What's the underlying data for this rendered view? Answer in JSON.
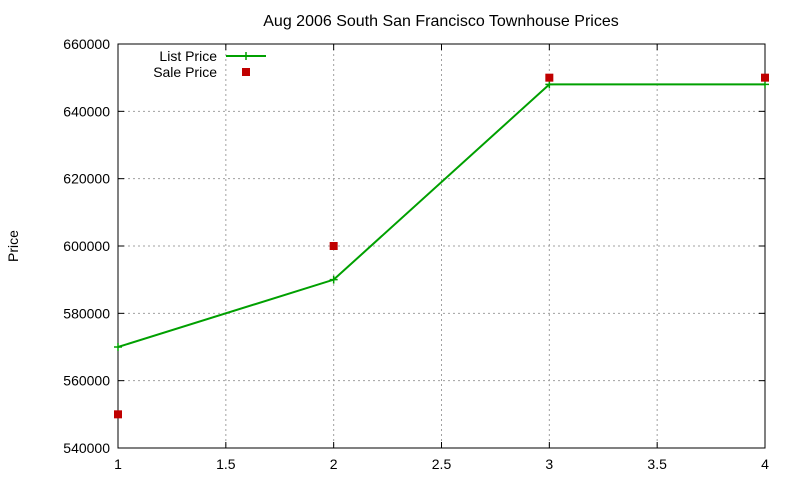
{
  "chart_data": {
    "type": "line",
    "title": "Aug 2006 South San Francisco Townhouse Prices",
    "xlabel": "",
    "ylabel": "Price",
    "xlim": [
      1,
      4
    ],
    "ylim": [
      540000,
      660000
    ],
    "x_ticks": [
      1,
      1.5,
      2,
      2.5,
      3,
      3.5,
      4
    ],
    "x_tick_labels": [
      "1",
      "1.5",
      "2",
      "2.5",
      "3",
      "3.5",
      "4"
    ],
    "y_ticks": [
      540000,
      560000,
      580000,
      600000,
      620000,
      640000,
      660000
    ],
    "y_tick_labels": [
      "540000",
      "560000",
      "580000",
      "600000",
      "620000",
      "640000",
      "660000"
    ],
    "grid": true,
    "legend_position": "top-left",
    "series": [
      {
        "name": "List Price",
        "style": "lines+crosses",
        "color": "#00a000",
        "x": [
          1,
          2,
          3,
          4
        ],
        "y": [
          570000,
          590000,
          648000,
          648000
        ]
      },
      {
        "name": "Sale Price",
        "style": "squares",
        "color": "#c00000",
        "x": [
          1,
          2,
          3,
          4
        ],
        "y": [
          550000,
          600000,
          650000,
          650000
        ]
      }
    ]
  }
}
